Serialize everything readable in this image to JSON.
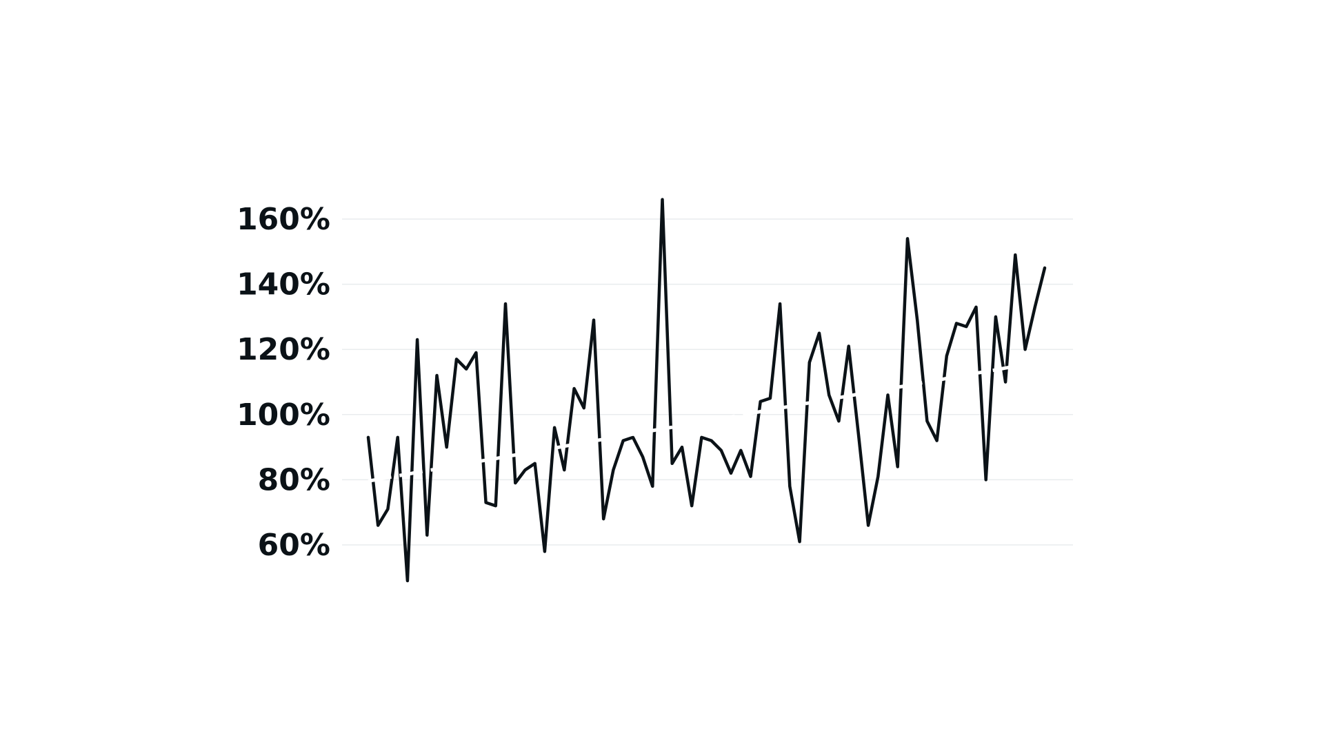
{
  "colors": {
    "background": "#ffffff",
    "series": "#0b1217",
    "trend": "#ffffff",
    "grid": "#e9ecee"
  },
  "chart_data": {
    "type": "line",
    "title": "",
    "xlabel": "",
    "ylabel": "",
    "ylim": [
      45,
      170
    ],
    "y_ticks": [
      60,
      80,
      100,
      120,
      140,
      160
    ],
    "y_tick_labels": [
      "60%",
      "80%",
      "100%",
      "120%",
      "140%",
      "160%"
    ],
    "grid": "horizontal",
    "legend": "none",
    "x": [
      1,
      2,
      3,
      4,
      5,
      6,
      7,
      8,
      9,
      10,
      11,
      12,
      13,
      14,
      15,
      16,
      17,
      18,
      19,
      20,
      21,
      22,
      23,
      24,
      25,
      26,
      27,
      28,
      29,
      30,
      31,
      32,
      33,
      34,
      35,
      36,
      37,
      38,
      39,
      40,
      41,
      42,
      43,
      44,
      45,
      46,
      47,
      48,
      49,
      50,
      51,
      52,
      53,
      54,
      55,
      56,
      57,
      58,
      59,
      60,
      61,
      62,
      63,
      64,
      65,
      66,
      67,
      68,
      69,
      70
    ],
    "series": [
      {
        "values": [
          93,
          66,
          71,
          93,
          49,
          123,
          63,
          112,
          90,
          117,
          114,
          119,
          73,
          72,
          134,
          79,
          83,
          85,
          58,
          96,
          83,
          108,
          102,
          129,
          68,
          83,
          92,
          93,
          87,
          78,
          166,
          85,
          90,
          72,
          93,
          92,
          89,
          82,
          89,
          81,
          104,
          105,
          134,
          78,
          61,
          116,
          125,
          106,
          98,
          121,
          94,
          66,
          81,
          106,
          84,
          154,
          129,
          98,
          92,
          118,
          128,
          127,
          133,
          80,
          130,
          110,
          149,
          120,
          133,
          145
        ]
      },
      {
        "values": [
          79.6,
          80.1,
          80.7,
          81.2,
          81.7,
          82.3,
          82.8,
          83.3,
          83.9,
          84.4,
          84.9,
          85.5,
          86,
          86.5,
          87.1,
          87.6,
          88.1,
          88.7,
          89.2,
          89.7,
          90.3,
          90.8,
          91.3,
          91.9,
          92.4,
          92.9,
          93.5,
          94,
          94.5,
          95.1,
          95.6,
          96.1,
          96.7,
          97.2,
          97.7,
          98.3,
          98.8,
          99.3,
          99.9,
          100.4,
          100.9,
          101.5,
          102,
          102.5,
          103.1,
          103.6,
          104.1,
          104.7,
          105.2,
          105.7,
          106.3,
          106.8,
          107.3,
          107.9,
          108.4,
          108.9,
          109.5,
          110,
          110.5,
          111.1,
          111.6,
          112.1,
          112.7,
          113.2,
          113.7,
          114.3,
          114.8,
          115.3,
          115.9,
          116.4
        ]
      }
    ]
  }
}
